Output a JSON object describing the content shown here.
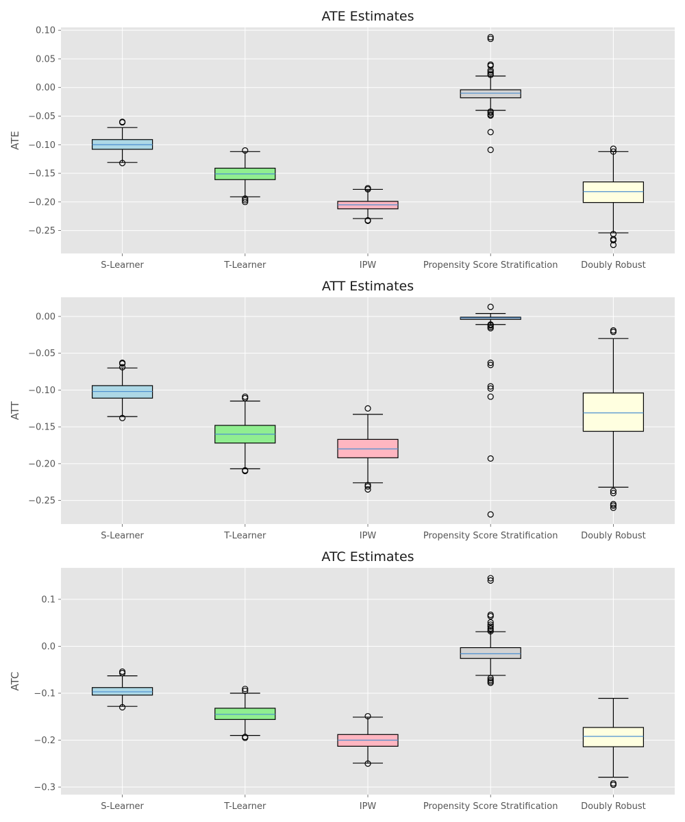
{
  "chart_data": [
    {
      "type": "box",
      "title": "ATE Estimates",
      "ylabel": "ATE",
      "ylim": [
        -0.29,
        0.105
      ],
      "yticks": [
        0.1,
        0.05,
        0.0,
        -0.05,
        -0.1,
        -0.15,
        -0.2,
        -0.25
      ],
      "ytick_labels": [
        "0.10",
        "0.05",
        "0.00",
        "−0.05",
        "−0.10",
        "−0.15",
        "−0.20",
        "−0.25"
      ],
      "categories": [
        "S-Learner",
        "T-Learner",
        "IPW",
        "Propensity Score Stratification",
        "Doubly Robust"
      ],
      "colors": [
        "#add8e6",
        "#90ee90",
        "#ffb6c1",
        "#d3d3d3",
        "#ffffe0"
      ],
      "boxes": [
        {
          "whislo": -0.131,
          "q1": -0.108,
          "med": -0.1,
          "q3": -0.091,
          "whishi": -0.07,
          "fliers": [
            -0.06,
            -0.061,
            -0.132
          ]
        },
        {
          "whislo": -0.191,
          "q1": -0.161,
          "med": -0.151,
          "q3": -0.141,
          "whishi": -0.112,
          "fliers": [
            -0.11,
            -0.194,
            -0.197,
            -0.2
          ]
        },
        {
          "whislo": -0.229,
          "q1": -0.212,
          "med": -0.205,
          "q3": -0.199,
          "whishi": -0.178,
          "fliers": [
            -0.176,
            -0.178,
            -0.232,
            -0.233
          ]
        },
        {
          "whislo": -0.04,
          "q1": -0.018,
          "med": -0.01,
          "q3": -0.004,
          "whishi": 0.02,
          "fliers": [
            0.088,
            0.085,
            0.04,
            0.038,
            0.03,
            0.027,
            0.024,
            0.022,
            -0.042,
            -0.044,
            -0.047,
            -0.049,
            -0.078,
            -0.109
          ]
        },
        {
          "whislo": -0.254,
          "q1": -0.201,
          "med": -0.182,
          "q3": -0.165,
          "whishi": -0.112,
          "fliers": [
            -0.107,
            -0.112,
            -0.256,
            -0.265,
            -0.267,
            -0.275
          ]
        }
      ]
    },
    {
      "type": "box",
      "title": "ATT Estimates",
      "ylabel": "ATT",
      "ylim": [
        -0.282,
        0.026
      ],
      "yticks": [
        0.0,
        -0.05,
        -0.1,
        -0.15,
        -0.2,
        -0.25
      ],
      "ytick_labels": [
        "0.00",
        "−0.05",
        "−0.10",
        "−0.15",
        "−0.20",
        "−0.25"
      ],
      "categories": [
        "S-Learner",
        "T-Learner",
        "IPW",
        "Propensity Score Stratification",
        "Doubly Robust"
      ],
      "colors": [
        "#add8e6",
        "#90ee90",
        "#ffb6c1",
        "#d3d3d3",
        "#ffffe0"
      ],
      "boxes": [
        {
          "whislo": -0.136,
          "q1": -0.111,
          "med": -0.102,
          "q3": -0.094,
          "whishi": -0.07,
          "fliers": [
            -0.063,
            -0.064,
            -0.069,
            -0.138
          ]
        },
        {
          "whislo": -0.207,
          "q1": -0.172,
          "med": -0.16,
          "q3": -0.148,
          "whishi": -0.115,
          "fliers": [
            -0.109,
            -0.111,
            -0.209,
            -0.21
          ]
        },
        {
          "whislo": -0.226,
          "q1": -0.192,
          "med": -0.18,
          "q3": -0.167,
          "whishi": -0.133,
          "fliers": [
            -0.125,
            -0.229,
            -0.231,
            -0.235
          ]
        },
        {
          "whislo": -0.011,
          "q1": -0.004,
          "med": -0.002,
          "q3": -0.001,
          "whishi": 0.004,
          "fliers": [
            0.013,
            -0.011,
            -0.012,
            -0.014,
            -0.016,
            -0.063,
            -0.066,
            -0.095,
            -0.098,
            -0.109,
            -0.193,
            -0.269
          ]
        },
        {
          "whislo": -0.232,
          "q1": -0.156,
          "med": -0.131,
          "q3": -0.104,
          "whishi": -0.03,
          "fliers": [
            -0.019,
            -0.021,
            -0.237,
            -0.24,
            -0.255,
            -0.257,
            -0.26
          ]
        }
      ]
    },
    {
      "type": "box",
      "title": "ATC Estimates",
      "ylabel": "ATC",
      "ylim": [
        -0.316,
        0.167
      ],
      "yticks": [
        0.1,
        0.0,
        -0.1,
        -0.2,
        -0.3
      ],
      "ytick_labels": [
        "0.1",
        "0.0",
        "−0.1",
        "−0.2",
        "−0.3"
      ],
      "categories": [
        "S-Learner",
        "T-Learner",
        "IPW",
        "Propensity Score Stratification",
        "Doubly Robust"
      ],
      "colors": [
        "#add8e6",
        "#90ee90",
        "#ffb6c1",
        "#d3d3d3",
        "#ffffe0"
      ],
      "boxes": [
        {
          "whislo": -0.128,
          "q1": -0.104,
          "med": -0.097,
          "q3": -0.088,
          "whishi": -0.063,
          "fliers": [
            -0.054,
            -0.057,
            -0.13
          ]
        },
        {
          "whislo": -0.19,
          "q1": -0.156,
          "med": -0.145,
          "q3": -0.132,
          "whishi": -0.1,
          "fliers": [
            -0.091,
            -0.095,
            -0.193,
            -0.195
          ]
        },
        {
          "whislo": -0.249,
          "q1": -0.213,
          "med": -0.2,
          "q3": -0.188,
          "whishi": -0.151,
          "fliers": [
            -0.149,
            -0.25
          ]
        },
        {
          "whislo": -0.062,
          "q1": -0.026,
          "med": -0.016,
          "q3": -0.003,
          "whishi": 0.031,
          "fliers": [
            0.145,
            0.14,
            0.067,
            0.064,
            0.051,
            0.046,
            0.042,
            0.038,
            0.035,
            0.032,
            -0.068,
            -0.072,
            -0.075,
            -0.078
          ]
        },
        {
          "whislo": -0.279,
          "q1": -0.214,
          "med": -0.192,
          "q3": -0.173,
          "whishi": -0.111,
          "fliers": [
            -0.292,
            -0.295
          ]
        }
      ]
    }
  ]
}
